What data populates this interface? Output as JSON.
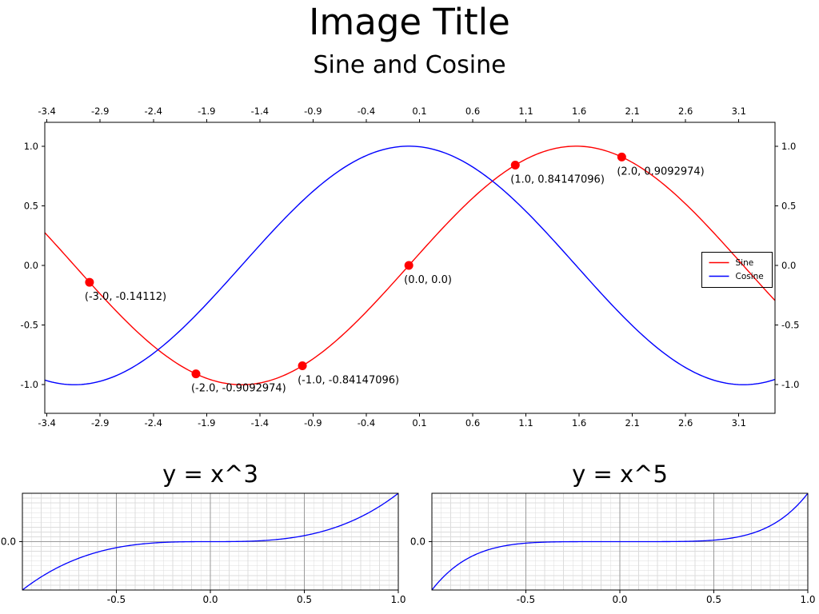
{
  "figure": {
    "title": "Image Title",
    "background_color": "#ffffff",
    "text_color": "#000000"
  },
  "chart_data": [
    {
      "id": "main",
      "type": "line",
      "title": "Sine and Cosine",
      "xlim": [
        -3.42,
        3.44
      ],
      "ylim": [
        -1.24,
        1.2
      ],
      "grid": null,
      "x_ticks": {
        "values": [
          -3.4,
          -2.9,
          -2.4,
          -1.9,
          -1.4,
          -0.9,
          -0.4,
          0.1,
          0.6,
          1.1,
          1.6,
          2.1,
          2.6,
          3.1
        ],
        "labels": [
          "-3.4",
          "-2.9",
          "-2.4",
          "-1.9",
          "-1.4",
          "-0.9",
          "-0.4",
          "0.1",
          "0.6",
          "1.1",
          "1.6",
          "2.1",
          "2.6",
          "3.1"
        ]
      },
      "y_ticks": {
        "values": [
          1.0,
          0.5,
          0.0,
          -0.5,
          -1.0
        ],
        "labels": [
          "1.0",
          "0.5",
          "0.0",
          "-0.5",
          "-1.0"
        ]
      },
      "series": [
        {
          "name": "Sine",
          "fn": "sin",
          "color": "#ff0000",
          "domain": [
            -3.42,
            3.44
          ]
        },
        {
          "name": "Cosine",
          "fn": "cos",
          "color": "#0000ff",
          "domain": [
            -3.42,
            3.44
          ]
        }
      ],
      "marker": {
        "color": "#ff0000",
        "radius": 5.5
      },
      "annotated_points": [
        {
          "x": -3.0,
          "y": -0.14112,
          "label": "(-3.0, -0.14112)"
        },
        {
          "x": -2.0,
          "y": -0.9092974,
          "label": "(-2.0, -0.9092974)"
        },
        {
          "x": -1.0,
          "y": -0.84147096,
          "label": "(-1.0, -0.84147096)"
        },
        {
          "x": 0.0,
          "y": 0.0,
          "label": "(0.0, 0.0)"
        },
        {
          "x": 1.0,
          "y": 0.84147096,
          "label": "(1.0, 0.84147096)"
        },
        {
          "x": 2.0,
          "y": 0.9092974,
          "label": "(2.0, 0.9092974)"
        }
      ],
      "legend": {
        "position": "center right",
        "border_color": "#000000",
        "entries": [
          {
            "label": "Sine",
            "color": "#ff0000"
          },
          {
            "label": "Cosine",
            "color": "#0000ff"
          }
        ]
      }
    },
    {
      "id": "x3",
      "type": "line",
      "title": "y = x^3",
      "xlim": [
        -1.0,
        1.0
      ],
      "ylim": [
        -1.0,
        1.0
      ],
      "grid": {
        "x_minor_step": 0.05,
        "y_minor_step": 0.1,
        "minor_color": "#dcdcdc",
        "major_color": "#9a9a9a"
      },
      "x_ticks": {
        "values": [
          -0.5,
          0.0,
          0.5,
          1.0
        ],
        "labels": [
          "-0.5",
          "0.0",
          "0.5",
          "1.0"
        ]
      },
      "y_ticks": {
        "values": [
          0.0
        ],
        "labels": [
          "0.0"
        ]
      },
      "series": [
        {
          "name": "y = x^3",
          "fn": "x3",
          "color": "#0000ff",
          "domain": [
            -1.0,
            1.0
          ]
        }
      ],
      "marker": null,
      "annotated_points": [],
      "legend": null
    },
    {
      "id": "x5",
      "type": "line",
      "title": "y = x^5",
      "xlim": [
        -1.0,
        1.0
      ],
      "ylim": [
        -1.0,
        1.0
      ],
      "grid": {
        "x_minor_step": 0.05,
        "y_minor_step": 0.1,
        "minor_color": "#dcdcdc",
        "major_color": "#9a9a9a"
      },
      "x_ticks": {
        "values": [
          -0.5,
          0.0,
          0.5,
          1.0
        ],
        "labels": [
          "-0.5",
          "0.0",
          "0.5",
          "1.0"
        ]
      },
      "y_ticks": {
        "values": [
          0.0
        ],
        "labels": [
          "0.0"
        ]
      },
      "series": [
        {
          "name": "y = x^5",
          "fn": "x5",
          "color": "#0000ff",
          "domain": [
            -1.0,
            1.0
          ]
        }
      ],
      "marker": null,
      "annotated_points": [],
      "legend": null
    }
  ]
}
